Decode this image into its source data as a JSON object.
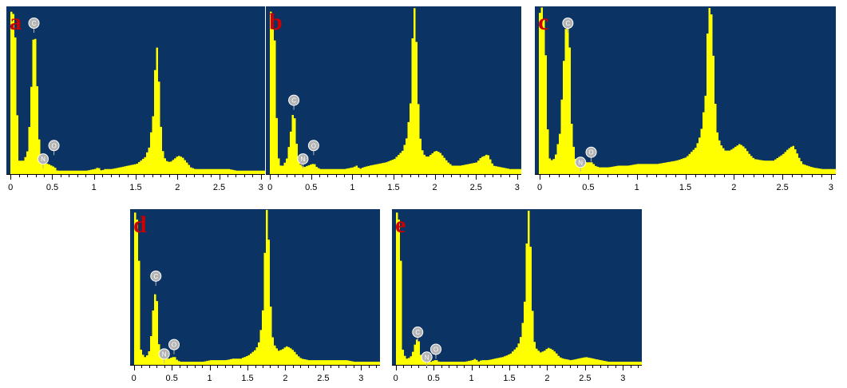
{
  "colors": {
    "background": "#0b3464",
    "spectrum": "#ffff00",
    "letter": "#cc0000",
    "peak_marker": "#b4b4b4",
    "axis": "#000000"
  },
  "chart_data": [
    {
      "type": "area",
      "panel_label": "a",
      "title": "",
      "xlabel": "",
      "ylabel": "",
      "xlim": [
        -0.05,
        3.05
      ],
      "ylim": [
        0,
        100
      ],
      "xticks": [
        0,
        0.5,
        1,
        1.5,
        2,
        2.5,
        3
      ],
      "xtick_labels": [
        "0",
        "0.5",
        "1",
        "1.5",
        "2",
        "2.5",
        "3"
      ],
      "grid": false,
      "peak_labels": [
        {
          "element": "C",
          "x": 0.28,
          "y": 90
        },
        {
          "element": "O",
          "x": 0.52,
          "y": 17
        },
        {
          "element": "N",
          "x": 0.39,
          "y": 9
        }
      ],
      "series": [
        {
          "x": [
            -0.05,
            -0.02,
            -0.01,
            0.0,
            0.01,
            0.02,
            0.04,
            0.06,
            0.08,
            0.12,
            0.15,
            0.2,
            0.24,
            0.26,
            0.28,
            0.3,
            0.32,
            0.35,
            0.39,
            0.44,
            0.48,
            0.52,
            0.55,
            0.6,
            0.7,
            0.8,
            0.9,
            1.0,
            1.04,
            1.08,
            1.12,
            1.2,
            1.3,
            1.4,
            1.5,
            1.6,
            1.65,
            1.7,
            1.72,
            1.74,
            1.76,
            1.78,
            1.8,
            1.82,
            1.85,
            1.9,
            1.95,
            2.0,
            2.05,
            2.1,
            2.15,
            2.2,
            2.3,
            2.4,
            2.5,
            2.6,
            2.7,
            2.8,
            2.9,
            3.0,
            3.05
          ],
          "y": [
            0,
            0,
            96,
            97,
            100,
            96,
            90,
            60,
            8,
            8,
            8,
            15,
            55,
            80,
            84,
            70,
            30,
            8,
            7,
            6,
            5,
            4,
            2,
            2,
            2,
            2,
            2,
            3,
            4,
            2,
            3,
            3,
            4,
            5,
            6,
            10,
            16,
            36,
            62,
            78,
            65,
            40,
            20,
            12,
            8,
            7,
            9,
            11,
            10,
            7,
            4,
            3,
            3,
            3,
            3,
            3,
            2,
            2,
            2,
            2,
            2
          ]
        }
      ]
    },
    {
      "type": "area",
      "panel_label": "b",
      "title": "",
      "xlabel": "",
      "ylabel": "",
      "xlim": [
        -0.05,
        3.05
      ],
      "ylim": [
        0,
        100
      ],
      "xticks": [
        0,
        0.5,
        1,
        1.5,
        2,
        2.5,
        3
      ],
      "xtick_labels": [
        "0",
        "0.5",
        "1",
        "1.5",
        "2",
        "2.5",
        "3"
      ],
      "grid": false,
      "peak_labels": [
        {
          "element": "C",
          "x": 0.29,
          "y": 44
        },
        {
          "element": "O",
          "x": 0.53,
          "y": 17
        },
        {
          "element": "N",
          "x": 0.4,
          "y": 9
        }
      ],
      "series": [
        {
          "x": [
            -0.05,
            -0.02,
            -0.01,
            0.0,
            0.01,
            0.02,
            0.04,
            0.06,
            0.08,
            0.12,
            0.15,
            0.2,
            0.24,
            0.26,
            0.28,
            0.3,
            0.32,
            0.35,
            0.4,
            0.45,
            0.5,
            0.53,
            0.56,
            0.6,
            0.7,
            0.8,
            0.9,
            1.0,
            1.04,
            1.08,
            1.12,
            1.2,
            1.3,
            1.4,
            1.5,
            1.6,
            1.65,
            1.7,
            1.72,
            1.74,
            1.76,
            1.78,
            1.8,
            1.82,
            1.85,
            1.9,
            1.95,
            2.0,
            2.05,
            2.1,
            2.15,
            2.2,
            2.3,
            2.4,
            2.5,
            2.55,
            2.6,
            2.63,
            2.66,
            2.7,
            2.8,
            2.9,
            3.0,
            3.05
          ],
          "y": [
            0,
            0,
            96,
            97,
            100,
            96,
            90,
            60,
            12,
            5,
            5,
            10,
            25,
            35,
            36,
            30,
            12,
            6,
            4,
            5,
            6,
            6,
            4,
            3,
            3,
            3,
            3,
            4,
            5,
            3,
            4,
            5,
            6,
            7,
            9,
            14,
            22,
            45,
            85,
            100,
            90,
            55,
            30,
            18,
            12,
            10,
            12,
            14,
            13,
            10,
            7,
            5,
            5,
            6,
            7,
            10,
            11,
            12,
            9,
            5,
            4,
            3,
            3,
            3
          ]
        }
      ]
    },
    {
      "type": "area",
      "panel_label": "c",
      "title": "",
      "xlabel": "",
      "ylabel": "",
      "xlim": [
        -0.05,
        3.05
      ],
      "ylim": [
        0,
        100
      ],
      "xticks": [
        0,
        0.5,
        1,
        1.5,
        2,
        2.5,
        3
      ],
      "xtick_labels": [
        "0",
        "0.5",
        "1",
        "1.5",
        "2",
        "2.5",
        "3"
      ],
      "grid": false,
      "peak_labels": [
        {
          "element": "C",
          "x": 0.29,
          "y": 90
        },
        {
          "element": "O",
          "x": 0.53,
          "y": 13
        },
        {
          "element": "N",
          "x": 0.42,
          "y": 7
        }
      ],
      "series": [
        {
          "x": [
            -0.05,
            -0.02,
            -0.01,
            0.0,
            0.01,
            0.02,
            0.04,
            0.06,
            0.08,
            0.12,
            0.15,
            0.2,
            0.24,
            0.26,
            0.28,
            0.3,
            0.32,
            0.35,
            0.4,
            0.45,
            0.5,
            0.53,
            0.56,
            0.6,
            0.7,
            0.8,
            0.9,
            1.0,
            1.1,
            1.2,
            1.3,
            1.4,
            1.5,
            1.6,
            1.65,
            1.7,
            1.72,
            1.74,
            1.76,
            1.78,
            1.8,
            1.82,
            1.85,
            1.9,
            1.95,
            2.0,
            2.05,
            2.1,
            2.15,
            2.2,
            2.3,
            2.4,
            2.5,
            2.55,
            2.6,
            2.63,
            2.66,
            2.7,
            2.8,
            2.9,
            3.0,
            3.05
          ],
          "y": [
            0,
            0,
            96,
            97,
            100,
            96,
            90,
            60,
            10,
            8,
            10,
            25,
            70,
            88,
            92,
            75,
            30,
            10,
            6,
            7,
            7,
            7,
            5,
            4,
            4,
            5,
            5,
            6,
            6,
            6,
            7,
            8,
            10,
            16,
            24,
            48,
            88,
            100,
            95,
            70,
            42,
            25,
            18,
            14,
            14,
            16,
            18,
            16,
            12,
            9,
            8,
            8,
            12,
            15,
            17,
            14,
            10,
            6,
            4,
            3,
            3,
            3
          ]
        }
      ]
    },
    {
      "type": "area",
      "panel_label": "d",
      "title": "",
      "xlabel": "",
      "ylabel": "",
      "xlim": [
        -0.05,
        3.25
      ],
      "ylim": [
        0,
        100
      ],
      "xticks": [
        0,
        0.5,
        1,
        1.5,
        2,
        2.5,
        3
      ],
      "xtick_labels": [
        "0",
        "0.5",
        "1",
        "1.5",
        "2",
        "2.5",
        "3"
      ],
      "grid": false,
      "peak_labels": [
        {
          "element": "C",
          "x": 0.29,
          "y": 57
        },
        {
          "element": "O",
          "x": 0.53,
          "y": 13
        },
        {
          "element": "N",
          "x": 0.4,
          "y": 7
        }
      ],
      "series": [
        {
          "x": [
            -0.05,
            -0.02,
            -0.01,
            0.0,
            0.01,
            0.02,
            0.04,
            0.06,
            0.08,
            0.12,
            0.15,
            0.2,
            0.24,
            0.26,
            0.28,
            0.3,
            0.32,
            0.35,
            0.4,
            0.45,
            0.5,
            0.53,
            0.56,
            0.6,
            0.7,
            0.8,
            0.9,
            1.0,
            1.1,
            1.2,
            1.3,
            1.4,
            1.5,
            1.6,
            1.65,
            1.7,
            1.72,
            1.74,
            1.76,
            1.78,
            1.8,
            1.82,
            1.85,
            1.9,
            1.95,
            2.0,
            2.05,
            2.1,
            2.15,
            2.2,
            2.3,
            2.4,
            2.5,
            2.6,
            2.7,
            2.8,
            2.9,
            3.0,
            3.1,
            3.2,
            3.25
          ],
          "y": [
            0,
            0,
            96,
            97,
            100,
            96,
            90,
            60,
            10,
            5,
            5,
            10,
            35,
            45,
            46,
            38,
            12,
            5,
            4,
            4,
            5,
            5,
            3,
            2,
            2,
            2,
            2,
            3,
            3,
            3,
            4,
            4,
            6,
            10,
            16,
            40,
            80,
            100,
            96,
            60,
            30,
            18,
            12,
            9,
            10,
            12,
            11,
            9,
            6,
            4,
            3,
            3,
            3,
            3,
            3,
            3,
            2,
            2,
            2,
            2,
            2
          ]
        }
      ]
    },
    {
      "type": "area",
      "panel_label": "e",
      "title": "",
      "xlabel": "",
      "ylabel": "",
      "xlim": [
        -0.05,
        3.25
      ],
      "ylim": [
        0,
        100
      ],
      "xticks": [
        0,
        0.5,
        1,
        1.5,
        2,
        2.5,
        3
      ],
      "xtick_labels": [
        "0",
        "0.5",
        "1",
        "1.5",
        "2",
        "2.5",
        "3"
      ],
      "grid": false,
      "peak_labels": [
        {
          "element": "C",
          "x": 0.29,
          "y": 21
        },
        {
          "element": "O",
          "x": 0.53,
          "y": 10
        },
        {
          "element": "N",
          "x": 0.41,
          "y": 5
        }
      ],
      "series": [
        {
          "x": [
            -0.05,
            -0.02,
            -0.01,
            0.0,
            0.01,
            0.02,
            0.04,
            0.06,
            0.08,
            0.12,
            0.15,
            0.2,
            0.24,
            0.26,
            0.28,
            0.3,
            0.32,
            0.35,
            0.4,
            0.45,
            0.5,
            0.53,
            0.56,
            0.6,
            0.7,
            0.8,
            0.9,
            1.0,
            1.04,
            1.08,
            1.12,
            1.2,
            1.3,
            1.4,
            1.5,
            1.6,
            1.65,
            1.7,
            1.72,
            1.74,
            1.76,
            1.78,
            1.8,
            1.82,
            1.85,
            1.9,
            1.95,
            2.0,
            2.05,
            2.1,
            2.15,
            2.2,
            2.3,
            2.4,
            2.5,
            2.6,
            2.7,
            2.8,
            2.9,
            3.0,
            3.1,
            3.2,
            3.25
          ],
          "y": [
            0,
            0,
            96,
            97,
            100,
            96,
            90,
            60,
            10,
            4,
            4,
            6,
            13,
            16,
            17,
            14,
            6,
            3,
            2,
            2,
            3,
            3,
            2,
            2,
            2,
            2,
            2,
            3,
            4,
            2,
            3,
            3,
            4,
            5,
            7,
            12,
            20,
            46,
            86,
            100,
            92,
            55,
            28,
            15,
            10,
            8,
            9,
            11,
            10,
            8,
            5,
            4,
            3,
            4,
            5,
            4,
            3,
            2,
            2,
            2,
            2,
            2,
            2
          ]
        }
      ]
    }
  ]
}
